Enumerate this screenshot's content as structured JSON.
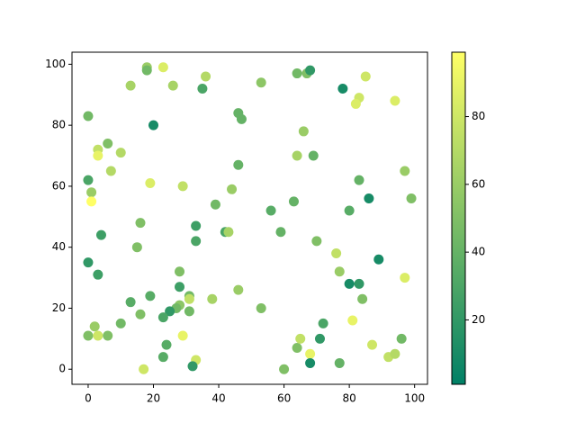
{
  "chart_data": {
    "type": "scatter",
    "x": [
      18,
      18,
      23,
      13,
      26,
      36,
      35,
      53,
      64,
      67,
      68,
      85,
      78,
      83,
      82,
      94,
      0,
      20,
      46,
      47,
      66,
      6,
      3,
      10,
      3,
      64,
      69,
      7,
      46,
      97,
      0,
      19,
      29,
      83,
      1,
      44,
      86,
      99,
      1,
      39,
      63,
      56,
      80,
      16,
      33,
      4,
      42,
      43,
      59,
      70,
      33,
      15,
      76,
      89,
      0,
      77,
      28,
      3,
      80,
      83,
      97,
      28,
      46,
      31,
      31,
      38,
      84,
      19,
      13,
      28,
      27,
      25,
      53,
      31,
      16,
      23,
      10,
      72,
      2,
      81,
      0,
      3,
      6,
      29,
      71,
      96,
      24,
      87,
      64,
      65,
      68,
      92,
      94,
      23,
      33,
      68,
      77,
      32,
      17,
      60
    ],
    "y": [
      99,
      98,
      99,
      93,
      93,
      96,
      92,
      94,
      97,
      97,
      98,
      96,
      92,
      89,
      87,
      88,
      83,
      80,
      84,
      82,
      78,
      74,
      72,
      71,
      70,
      70,
      70,
      65,
      67,
      65,
      62,
      61,
      60,
      62,
      58,
      59,
      56,
      56,
      55,
      54,
      55,
      52,
      52,
      48,
      47,
      44,
      45,
      45,
      45,
      42,
      42,
      40,
      38,
      36,
      35,
      32,
      32,
      31,
      28,
      28,
      30,
      27,
      26,
      24,
      23,
      23,
      23,
      24,
      22,
      21,
      20,
      19,
      20,
      19,
      18,
      17,
      15,
      15,
      14,
      16,
      11,
      11,
      11,
      11,
      10,
      10,
      8,
      8,
      7,
      10,
      5,
      4,
      5,
      4,
      3,
      2,
      2,
      1,
      0,
      0
    ],
    "c": [
      60,
      45,
      85,
      65,
      65,
      70,
      30,
      55,
      45,
      50,
      20,
      80,
      10,
      80,
      85,
      85,
      45,
      10,
      40,
      40,
      60,
      50,
      75,
      70,
      90,
      65,
      40,
      70,
      40,
      60,
      30,
      85,
      75,
      40,
      60,
      60,
      10,
      50,
      99,
      45,
      40,
      35,
      35,
      50,
      25,
      25,
      30,
      65,
      40,
      50,
      30,
      50,
      75,
      10,
      20,
      60,
      50,
      25,
      10,
      20,
      85,
      25,
      60,
      45,
      75,
      65,
      50,
      35,
      35,
      55,
      45,
      20,
      50,
      45,
      50,
      30,
      45,
      30,
      60,
      90,
      50,
      80,
      50,
      90,
      20,
      45,
      35,
      80,
      50,
      75,
      90,
      75,
      70,
      35,
      80,
      10,
      40,
      20,
      80,
      50
    ],
    "xlim": [
      -4.95,
      103.95
    ],
    "ylim": [
      -4.95,
      103.95
    ],
    "xticks": [
      0,
      20,
      40,
      60,
      80,
      100
    ],
    "yticks": [
      0,
      20,
      40,
      60,
      80,
      100
    ],
    "colormap": "summer",
    "clim": [
      1,
      99
    ],
    "colorbar_ticks": [
      20,
      40,
      60,
      80
    ]
  }
}
